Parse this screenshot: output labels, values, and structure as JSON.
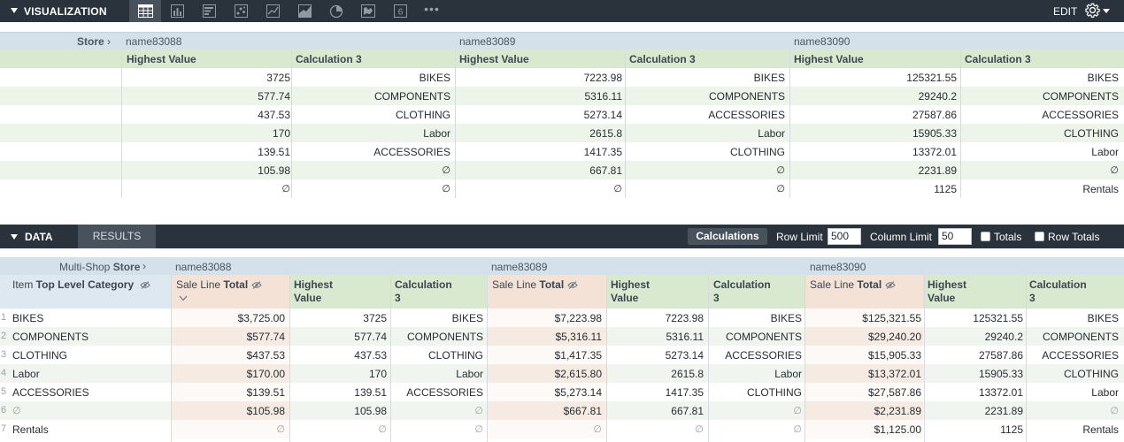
{
  "visualization": {
    "title": "VISUALIZATION",
    "tabs": [
      {
        "name": "table-icon",
        "active": true
      },
      {
        "name": "bar-chart-icon"
      },
      {
        "name": "column-chart-icon"
      },
      {
        "name": "scatter-chart-icon"
      },
      {
        "name": "line-chart-icon"
      },
      {
        "name": "area-chart-icon"
      },
      {
        "name": "pie-chart-icon"
      },
      {
        "name": "map-icon"
      },
      {
        "name": "single-value-icon",
        "label": "6"
      },
      {
        "name": "more-icon",
        "label": "•••"
      }
    ],
    "edit_label": "EDIT",
    "pivot_label": "Store",
    "pivots": [
      "name83088",
      "name83089",
      "name83090"
    ],
    "columns": [
      "Highest Value",
      "Calculation 3"
    ],
    "rows": [
      [
        "3725",
        "BIKES",
        "7223.98",
        "BIKES",
        "125321.55",
        "BIKES"
      ],
      [
        "577.74",
        "COMPONENTS",
        "5316.11",
        "COMPONENTS",
        "29240.2",
        "COMPONENTS"
      ],
      [
        "437.53",
        "CLOTHING",
        "5273.14",
        "ACCESSORIES",
        "27587.86",
        "ACCESSORIES"
      ],
      [
        "170",
        "Labor",
        "2615.8",
        "Labor",
        "15905.33",
        "CLOTHING"
      ],
      [
        "139.51",
        "ACCESSORIES",
        "1417.35",
        "CLOTHING",
        "13372.01",
        "Labor"
      ],
      [
        "105.98",
        "∅",
        "667.81",
        "∅",
        "2231.89",
        "∅"
      ],
      [
        "∅",
        "∅",
        "∅",
        "∅",
        "1125",
        "Rentals"
      ]
    ]
  },
  "data_panel": {
    "title": "DATA",
    "results_tab": "RESULTS",
    "calculations_label": "Calculations",
    "row_limit_label": "Row Limit",
    "row_limit_value": "500",
    "column_limit_label": "Column Limit",
    "column_limit_value": "50",
    "totals_label": "Totals",
    "row_totals_label": "Row Totals",
    "pivot_label_prefix": "Multi-Shop ",
    "pivot_label_bold": "Store",
    "pivots": [
      "name83088",
      "name83089",
      "name83090"
    ],
    "dim_header_prefix": "Item ",
    "dim_header_bold": "Top Level Category",
    "measure_header_prefix": "Sale Line ",
    "measure_header_bold": "Total",
    "calc_headers": [
      "Highest Value",
      "Calculation 3"
    ],
    "rows": [
      {
        "num": "1",
        "dim": "BIKES",
        "vals": [
          "$3,725.00",
          "3725",
          "BIKES",
          "$7,223.98",
          "7223.98",
          "BIKES",
          "$125,321.55",
          "125321.55",
          "BIKES"
        ]
      },
      {
        "num": "2",
        "dim": "COMPONENTS",
        "vals": [
          "$577.74",
          "577.74",
          "COMPONENTS",
          "$5,316.11",
          "5316.11",
          "COMPONENTS",
          "$29,240.20",
          "29240.2",
          "COMPONENTS"
        ]
      },
      {
        "num": "3",
        "dim": "CLOTHING",
        "vals": [
          "$437.53",
          "437.53",
          "CLOTHING",
          "$1,417.35",
          "5273.14",
          "ACCESSORIES",
          "$15,905.33",
          "27587.86",
          "ACCESSORIES"
        ]
      },
      {
        "num": "4",
        "dim": "Labor",
        "vals": [
          "$170.00",
          "170",
          "Labor",
          "$2,615.80",
          "2615.8",
          "Labor",
          "$13,372.01",
          "15905.33",
          "CLOTHING"
        ]
      },
      {
        "num": "5",
        "dim": "ACCESSORIES",
        "vals": [
          "$139.51",
          "139.51",
          "ACCESSORIES",
          "$5,273.14",
          "1417.35",
          "CLOTHING",
          "$27,587.86",
          "13372.01",
          "Labor"
        ]
      },
      {
        "num": "6",
        "dim": "∅",
        "vals": [
          "$105.98",
          "105.98",
          "∅",
          "$667.81",
          "667.81",
          "∅",
          "$2,231.89",
          "2231.89",
          "∅"
        ]
      },
      {
        "num": "7",
        "dim": "Rentals",
        "vals": [
          "∅",
          "∅",
          "∅",
          "∅",
          "∅",
          "∅",
          "$1,125.00",
          "1125",
          "Rentals"
        ]
      }
    ]
  }
}
